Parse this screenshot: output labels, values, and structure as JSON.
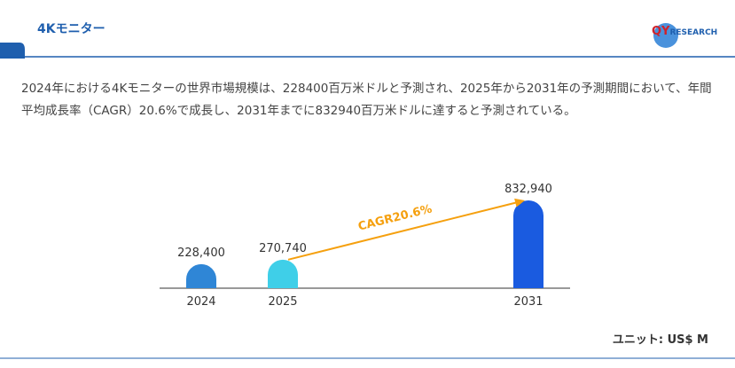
{
  "header": {
    "title": "4Kモニター"
  },
  "logo": {
    "mark": "QY",
    "text": "RESEARCH"
  },
  "description": "2024年における4Kモニターの世界市場規模は、228400百万米ドルと予測され、2025年から2031年の予測期間において、年間平均成長率（CAGR）20.6%で成長し、2031年までに832940百万米ドルに達すると予測されている。",
  "chart_data": {
    "type": "bar",
    "categories": [
      "2024",
      "2025",
      "2031"
    ],
    "values": [
      228400,
      270740,
      832940
    ],
    "value_labels": [
      "228,400",
      "270,740",
      "832,940"
    ],
    "colors": [
      "#2f86d6",
      "#3fcfe8",
      "#1a5be0"
    ],
    "annotation": "CAGR20.6%",
    "annotation_color": "#f5a00f",
    "unit": "ユニット: US$ M"
  }
}
